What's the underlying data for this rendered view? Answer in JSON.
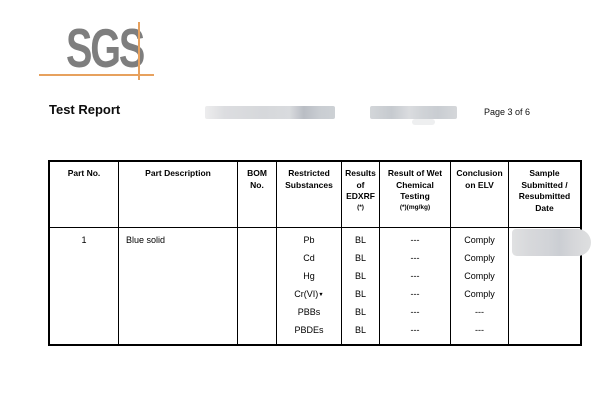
{
  "colors": {
    "brand_orange": "#e7a15e",
    "logo_gray": "#7e7e7e"
  },
  "logo": {
    "text": "SGS"
  },
  "header": {
    "title": "Test Report",
    "page_indicator": "Page 3 of 6"
  },
  "table": {
    "headers": [
      {
        "lines": [
          "Part No."
        ]
      },
      {
        "lines": [
          "Part Description"
        ]
      },
      {
        "lines": [
          "BOM",
          "No."
        ]
      },
      {
        "lines": [
          "Restricted",
          "Substances"
        ]
      },
      {
        "lines": [
          "Results",
          "of",
          "EDXRF"
        ],
        "footnote": "(*)"
      },
      {
        "lines": [
          "Result of Wet",
          "Chemical",
          "Testing"
        ],
        "footnote": "(*)(mg/kg)"
      },
      {
        "lines": [
          "Conclusion",
          "on ELV"
        ]
      },
      {
        "lines": [
          "Sample",
          "Submitted /",
          "Resubmitted",
          "Date"
        ]
      }
    ],
    "rows": [
      {
        "part_no": "1",
        "part_description": "Blue solid",
        "bom_no": "",
        "substances": [
          {
            "name": "Pb",
            "marker": "",
            "edxrf": "BL",
            "wet_chemical": "---",
            "conclusion": "Comply"
          },
          {
            "name": "Cd",
            "marker": "",
            "edxrf": "BL",
            "wet_chemical": "---",
            "conclusion": "Comply"
          },
          {
            "name": "Hg",
            "marker": "",
            "edxrf": "BL",
            "wet_chemical": "---",
            "conclusion": "Comply"
          },
          {
            "name": "Cr(VI)",
            "marker": "▼",
            "edxrf": "BL",
            "wet_chemical": "---",
            "conclusion": "Comply"
          },
          {
            "name": "PBBs",
            "marker": "",
            "edxrf": "BL",
            "wet_chemical": "---",
            "conclusion": "---"
          },
          {
            "name": "PBDEs",
            "marker": "",
            "edxrf": "BL",
            "wet_chemical": "---",
            "conclusion": "---"
          }
        ]
      }
    ]
  }
}
